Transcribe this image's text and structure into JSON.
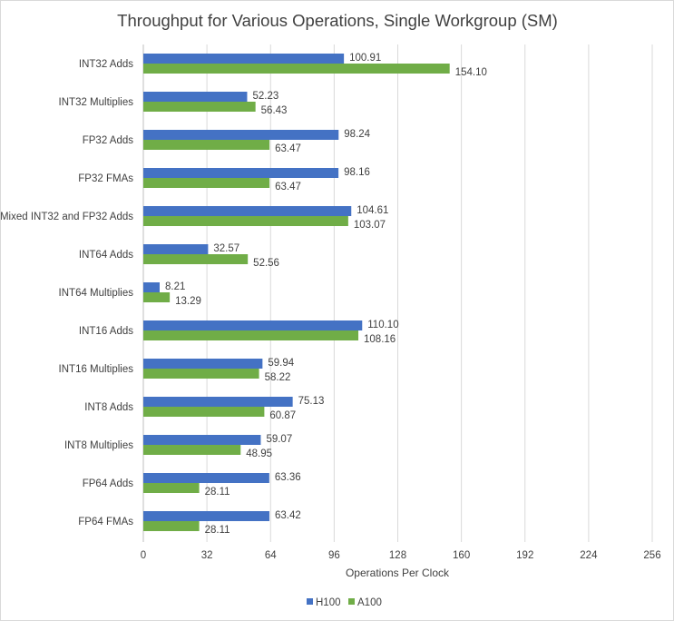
{
  "chart_data": {
    "type": "bar",
    "orientation": "horizontal",
    "title": "Throughput for Various Operations, Single Workgroup (SM)",
    "xlabel": "Operations Per Clock",
    "ylabel": "",
    "xlim": [
      0,
      256
    ],
    "xticks": [
      0,
      32,
      64,
      96,
      128,
      160,
      192,
      224,
      256
    ],
    "grid": true,
    "legend": "bottom",
    "categories": [
      "INT32 Adds",
      "INT32 Multiplies",
      "FP32 Adds",
      "FP32 FMAs",
      "Mixed INT32 and FP32 Adds",
      "INT64 Adds",
      "INT64 Multiplies",
      "INT16 Adds",
      "INT16 Multiplies",
      "INT8 Adds",
      "INT8 Multiplies",
      "FP64 Adds",
      "FP64 FMAs"
    ],
    "series": [
      {
        "name": "H100",
        "color": "#4472c4",
        "values": [
          100.91,
          52.23,
          98.24,
          98.16,
          104.61,
          32.57,
          8.21,
          110.1,
          59.94,
          75.13,
          59.07,
          63.36,
          63.42
        ]
      },
      {
        "name": "A100",
        "color": "#70ad47",
        "values": [
          154.1,
          56.43,
          63.47,
          63.47,
          103.07,
          52.56,
          13.29,
          108.16,
          58.22,
          60.87,
          48.95,
          28.11,
          28.11
        ]
      }
    ]
  }
}
